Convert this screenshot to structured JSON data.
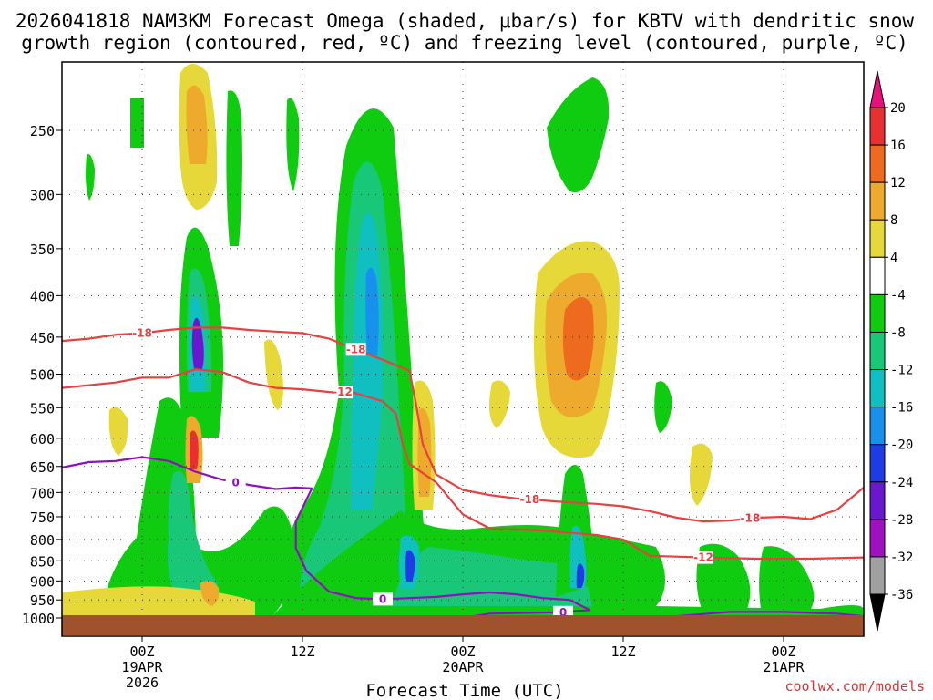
{
  "title": {
    "line1": "2026041818 NAM3KM Forecast Omega (shaded, μbar/s) for KBTV with dendritic snow",
    "line2": "growth region (contoured, red, ºC) and freezing level (contoured, purple, ºC)"
  },
  "credit": "coolwx.com/models",
  "chart_data": {
    "type": "heatmap",
    "xlabel": "Forecast Time (UTC)",
    "x_hours_range": [
      -6,
      54
    ],
    "y_pressure_range_hpa": [
      1000,
      200
    ],
    "y_ticks": [
      {
        "p": 250,
        "label": "250"
      },
      {
        "p": 300,
        "label": "300"
      },
      {
        "p": 350,
        "label": "350"
      },
      {
        "p": 400,
        "label": "400"
      },
      {
        "p": 450,
        "label": "450"
      },
      {
        "p": 500,
        "label": "500"
      },
      {
        "p": 550,
        "label": "550"
      },
      {
        "p": 600,
        "label": "600"
      },
      {
        "p": 650,
        "label": "650"
      },
      {
        "p": 700,
        "label": "700"
      },
      {
        "p": 750,
        "label": "750"
      },
      {
        "p": 800,
        "label": "800"
      },
      {
        "p": 850,
        "label": "850"
      },
      {
        "p": 900,
        "label": "900"
      },
      {
        "p": 950,
        "label": "950"
      },
      {
        "p": 1000,
        "label": "1000"
      }
    ],
    "x_ticks": [
      {
        "h": 0,
        "lines": [
          "00Z",
          "19APR",
          "2026"
        ]
      },
      {
        "h": 12,
        "lines": [
          "12Z"
        ]
      },
      {
        "h": 24,
        "lines": [
          "00Z",
          "20APR"
        ]
      },
      {
        "h": 36,
        "lines": [
          "12Z"
        ]
      },
      {
        "h": 48,
        "lines": [
          "00Z",
          "21APR"
        ]
      }
    ],
    "colorbar": {
      "labels": [
        "20",
        "16",
        "12",
        "8",
        "4",
        "-4",
        "-8",
        "-12",
        "-16",
        "-20",
        "-24",
        "-28",
        "-32",
        "-36"
      ],
      "colors": [
        "#e8107a",
        "#e83030",
        "#ee6a1e",
        "#eeaa2c",
        "#e6d838",
        "#ffffff",
        "#10cc10",
        "#18c878",
        "#10c0c0",
        "#1890ee",
        "#1e3ce6",
        "#6a18d0",
        "#a010c0",
        "#a0a0a0",
        "#000000"
      ]
    },
    "contours": [
      {
        "name": "-18",
        "label": "-18",
        "color": "#e84040",
        "points": [
          [
            -6,
            455
          ],
          [
            -4,
            452
          ],
          [
            -2,
            447
          ],
          [
            0,
            445
          ],
          [
            2,
            441
          ],
          [
            4,
            438
          ],
          [
            6,
            438
          ],
          [
            8,
            441
          ],
          [
            10,
            443
          ],
          [
            12,
            445
          ],
          [
            14,
            452
          ],
          [
            16,
            466
          ],
          [
            18,
            480
          ],
          [
            20,
            495
          ],
          [
            20.5,
            545
          ],
          [
            21,
            610
          ],
          [
            22,
            665
          ],
          [
            24,
            695
          ],
          [
            26,
            705
          ],
          [
            28,
            712
          ],
          [
            30,
            716
          ],
          [
            32,
            720
          ],
          [
            34,
            723
          ],
          [
            36,
            728
          ],
          [
            38,
            738
          ],
          [
            40,
            752
          ],
          [
            42,
            760
          ],
          [
            44,
            758
          ],
          [
            46,
            752
          ],
          [
            48,
            750
          ],
          [
            50,
            755
          ],
          [
            52,
            735
          ],
          [
            54,
            690
          ]
        ],
        "label_points": [
          [
            0,
            445
          ],
          [
            16,
            466
          ],
          [
            29,
            714
          ],
          [
            45.5,
            753
          ]
        ]
      },
      {
        "name": "-12",
        "label": "-12",
        "color": "#e84040",
        "points": [
          [
            -6,
            520
          ],
          [
            -2,
            512
          ],
          [
            0,
            505
          ],
          [
            2,
            505
          ],
          [
            4,
            493
          ],
          [
            6,
            497
          ],
          [
            8,
            512
          ],
          [
            10,
            520
          ],
          [
            12,
            522
          ],
          [
            14,
            526
          ],
          [
            16,
            528
          ],
          [
            18,
            540
          ],
          [
            19,
            560
          ],
          [
            19.5,
            610
          ],
          [
            20,
            645
          ],
          [
            22,
            680
          ],
          [
            24,
            745
          ],
          [
            26,
            775
          ],
          [
            30,
            780
          ],
          [
            34,
            790
          ],
          [
            36,
            800
          ],
          [
            38,
            838
          ],
          [
            42,
            842
          ],
          [
            46,
            845
          ],
          [
            50,
            845
          ],
          [
            54,
            842
          ]
        ],
        "label_points": [
          [
            15,
            526
          ],
          [
            42,
            842
          ]
        ]
      },
      {
        "name": "0",
        "label": "0",
        "color": "#9010c0",
        "points": [
          [
            -6,
            652
          ],
          [
            -4,
            642
          ],
          [
            -2,
            640
          ],
          [
            0,
            633
          ],
          [
            2,
            640
          ],
          [
            4,
            660
          ],
          [
            6,
            675
          ],
          [
            8,
            685
          ],
          [
            10,
            693
          ],
          [
            11.5,
            690
          ],
          [
            12.7,
            692
          ],
          [
            12.2,
            720
          ],
          [
            11.5,
            760
          ],
          [
            11.5,
            820
          ],
          [
            12.3,
            875
          ],
          [
            14,
            928
          ],
          [
            16,
            945
          ],
          [
            18,
            948
          ],
          [
            20,
            945
          ],
          [
            22,
            942
          ],
          [
            24,
            935
          ],
          [
            26,
            930
          ],
          [
            28,
            935
          ],
          [
            30,
            945
          ],
          [
            32,
            950
          ],
          [
            33.5,
            978
          ],
          [
            31,
            984
          ],
          [
            28,
            986
          ],
          [
            26,
            988
          ],
          [
            24,
            1000
          ],
          [
            36,
            1000
          ],
          [
            40,
            995
          ],
          [
            44,
            983
          ],
          [
            48,
            983
          ],
          [
            52,
            988
          ],
          [
            54,
            995
          ]
        ],
        "label_points": [
          [
            7,
            681
          ],
          [
            18,
            948
          ],
          [
            31.5,
            984
          ]
        ]
      }
    ]
  }
}
